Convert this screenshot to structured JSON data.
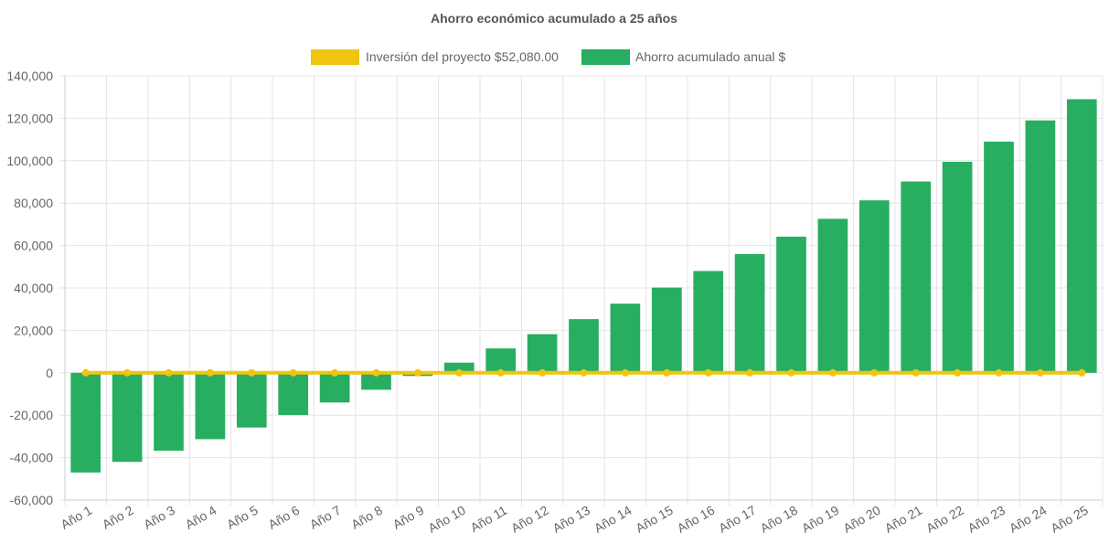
{
  "chart_data": {
    "type": "bar",
    "title": "Ahorro económico acumulado a 25 años",
    "legend_position": "top-center",
    "grid": true,
    "categories": [
      "Año 1",
      "Año 2",
      "Año 3",
      "Año 4",
      "Año 5",
      "Año 6",
      "Año 7",
      "Año 8",
      "Año 9",
      "Año 10",
      "Año 11",
      "Año 12",
      "Año 13",
      "Año 14",
      "Año 15",
      "Año 16",
      "Año 17",
      "Año 18",
      "Año 19",
      "Año 20",
      "Año 21",
      "Año 22",
      "Año 23",
      "Año 24",
      "Año 25"
    ],
    "ylim": [
      -60000,
      140000
    ],
    "yticks": [
      140000,
      120000,
      100000,
      80000,
      60000,
      40000,
      20000,
      0,
      -20000,
      -40000,
      -60000
    ],
    "ytick_labels": [
      "140,000",
      "120,000",
      "100,000",
      "80,000",
      "60,000",
      "40,000",
      "20,000",
      "0",
      "-20,000",
      "-40,000",
      "-60,000"
    ],
    "series": [
      {
        "name": "Inversión del proyecto $52,080.00",
        "type": "line",
        "color": "#f1c40f",
        "values": [
          0,
          0,
          0,
          0,
          0,
          0,
          0,
          0,
          0,
          0,
          0,
          0,
          0,
          0,
          0,
          0,
          0,
          0,
          0,
          0,
          0,
          0,
          0,
          0,
          0
        ]
      },
      {
        "name": "Ahorro acumulado anual $",
        "type": "bar",
        "color": "#27ae60",
        "values": [
          -47000,
          -42000,
          -36700,
          -31300,
          -25800,
          -19900,
          -14000,
          -8000,
          -1500,
          4800,
          11500,
          18200,
          25300,
          32600,
          40200,
          48000,
          56000,
          64200,
          72600,
          81300,
          90200,
          99500,
          109000,
          119000,
          129000
        ]
      }
    ]
  }
}
